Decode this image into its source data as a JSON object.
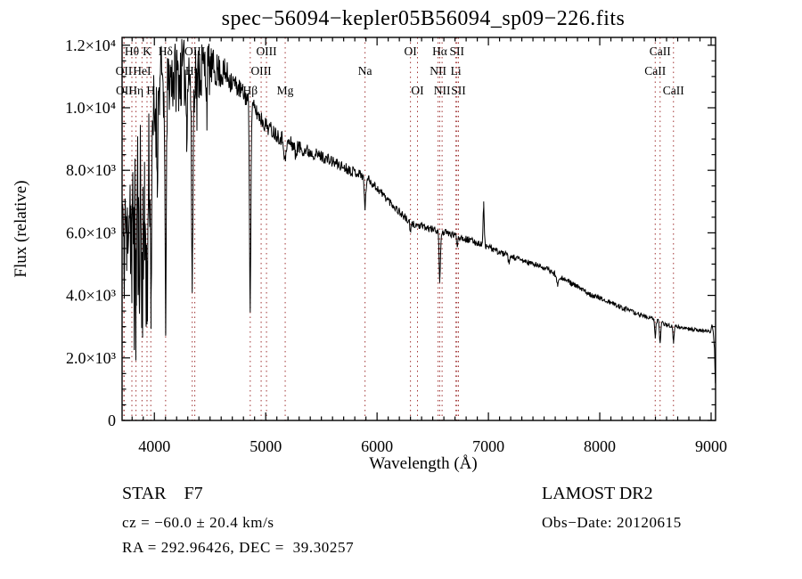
{
  "title": "spec−56094−kepler05B56094_sp09−226.fits",
  "footer": {
    "class_label": "STAR    F7",
    "survey": "LAMOST DR2",
    "cz": "cz = −60.0 ± 20.4 km/s",
    "obs_date": "Obs−Date: 20120615",
    "coords": "RA = 292.96426, DEC =  39.30257"
  },
  "chart_data": {
    "type": "line",
    "title": "spec−56094−kepler05B56094_sp09−226.fits",
    "xlabel": "Wavelength (Å)",
    "ylabel": "Flux (relative)",
    "xlim": [
      3710,
      9040
    ],
    "ylim": [
      0,
      12250
    ],
    "grid": false,
    "line_color": "#000000",
    "marker_line_color": "#a03333",
    "x_major_ticks": [
      4000,
      5000,
      6000,
      7000,
      8000,
      9000
    ],
    "x_tick_labels": [
      "4000",
      "5000",
      "6000",
      "7000",
      "8000",
      "9000"
    ],
    "x_minor_step": 100,
    "y_major_ticks": [
      0,
      2000,
      4000,
      6000,
      8000,
      10000,
      12000
    ],
    "y_tick_labels": [
      "0",
      "2.0×10³",
      "4.0×10³",
      "6.0×10³",
      "8.0×10³",
      "1.0×10⁴",
      "1.2×10⁴"
    ],
    "y_minor_step": 500,
    "line_markers": [
      {
        "label": "Hθ",
        "wavelength": 3798,
        "row": 1
      },
      {
        "label": "K",
        "wavelength": 3934,
        "row": 1
      },
      {
        "label": "Hδ",
        "wavelength": 4101,
        "row": 1
      },
      {
        "label": "OIII",
        "wavelength": 4363,
        "row": 1
      },
      {
        "label": "OIII",
        "wavelength": 5007,
        "row": 1
      },
      {
        "label": "OI",
        "wavelength": 6300,
        "row": 1
      },
      {
        "label": "Hα",
        "wavelength": 6563,
        "row": 1
      },
      {
        "label": "SII",
        "wavelength": 6717,
        "row": 1
      },
      {
        "label": "CaII",
        "wavelength": 8542,
        "row": 1
      },
      {
        "label": "OII",
        "wavelength": 3726,
        "row": 2
      },
      {
        "label": "HeI",
        "wavelength": 3889,
        "row": 2
      },
      {
        "label": "Hγ",
        "wavelength": 4340,
        "row": 2
      },
      {
        "label": "OIII",
        "wavelength": 4959,
        "row": 2
      },
      {
        "label": "Na",
        "wavelength": 5892,
        "row": 2
      },
      {
        "label": "NII",
        "wavelength": 6548,
        "row": 2
      },
      {
        "label": "Li",
        "wavelength": 6708,
        "row": 2
      },
      {
        "label": "CaII",
        "wavelength": 8498,
        "row": 2
      },
      {
        "label": "OII",
        "wavelength": 3729,
        "row": 3
      },
      {
        "label": "Hη",
        "wavelength": 3835,
        "row": 3
      },
      {
        "label": "H",
        "wavelength": 3968,
        "row": 3
      },
      {
        "label": "Hβ",
        "wavelength": 4861,
        "row": 3
      },
      {
        "label": "Mg",
        "wavelength": 5175,
        "row": 3
      },
      {
        "label": "OI",
        "wavelength": 6363,
        "row": 3
      },
      {
        "label": "NII",
        "wavelength": 6584,
        "row": 3
      },
      {
        "label": "SII",
        "wavelength": 6731,
        "row": 3
      },
      {
        "label": "CaII",
        "wavelength": 8662,
        "row": 3
      }
    ],
    "continuum": [
      [
        3710,
        6900
      ],
      [
        3780,
        7050
      ],
      [
        3860,
        7450
      ],
      [
        3920,
        8200
      ],
      [
        3980,
        9300
      ],
      [
        4050,
        10800
      ],
      [
        4150,
        11000
      ],
      [
        4300,
        11100
      ],
      [
        4500,
        11300
      ],
      [
        4650,
        11050
      ],
      [
        4800,
        10450
      ],
      [
        4900,
        9950
      ],
      [
        5000,
        9450
      ],
      [
        5100,
        9150
      ],
      [
        5200,
        8900
      ],
      [
        5350,
        8650
      ],
      [
        5500,
        8450
      ],
      [
        5700,
        8100
      ],
      [
        5900,
        7800
      ],
      [
        6100,
        7050
      ],
      [
        6300,
        6300
      ],
      [
        6450,
        6150
      ],
      [
        6560,
        6060
      ],
      [
        6700,
        5920
      ],
      [
        6950,
        5620
      ],
      [
        7100,
        5380
      ],
      [
        7300,
        5120
      ],
      [
        7500,
        4890
      ],
      [
        7700,
        4480
      ],
      [
        7900,
        4060
      ],
      [
        8100,
        3760
      ],
      [
        8300,
        3460
      ],
      [
        8480,
        3240
      ],
      [
        8600,
        3060
      ],
      [
        8750,
        2960
      ],
      [
        8900,
        2880
      ],
      [
        8990,
        2840
      ],
      [
        9018,
        2860
      ],
      [
        9030,
        2300
      ],
      [
        9040,
        850
      ]
    ],
    "noise_segments": [
      [
        3710,
        3780,
        1200,
        2400
      ],
      [
        3780,
        3940,
        3000,
        3000
      ],
      [
        3940,
        4055,
        2300,
        1100
      ],
      [
        4055,
        4500,
        1250,
        1000
      ],
      [
        4500,
        4700,
        650,
        420
      ],
      [
        4700,
        4900,
        330,
        290
      ],
      [
        4900,
        5400,
        270,
        230
      ],
      [
        5400,
        5900,
        200,
        160
      ],
      [
        5900,
        6300,
        145,
        130
      ],
      [
        6300,
        6900,
        115,
        110
      ],
      [
        6900,
        7600,
        100,
        92
      ],
      [
        7600,
        8300,
        85,
        78
      ],
      [
        8300,
        8700,
        70,
        64
      ],
      [
        8700,
        9040,
        58,
        48
      ]
    ],
    "absorption_lines": [
      [
        3727,
        2100,
        5
      ],
      [
        3752,
        1900,
        5
      ],
      [
        3798,
        2900,
        5
      ],
      [
        3820,
        2300,
        5
      ],
      [
        3835,
        3300,
        5
      ],
      [
        3860,
        2600,
        5
      ],
      [
        3889,
        3900,
        6
      ],
      [
        3912,
        2700,
        5
      ],
      [
        3934,
        4900,
        7
      ],
      [
        3970,
        4700,
        7
      ],
      [
        4026,
        2100,
        5
      ],
      [
        4101,
        7300,
        7
      ],
      [
        4290,
        1500,
        5
      ],
      [
        4340,
        6500,
        7
      ],
      [
        4383,
        1300,
        4
      ],
      [
        4472,
        1000,
        4
      ],
      [
        4861,
        6400,
        6
      ],
      [
        5175,
        650,
        9
      ],
      [
        5269,
        350,
        6
      ],
      [
        5892,
        1000,
        7
      ],
      [
        6300,
        300,
        5
      ],
      [
        6563,
        1600,
        6
      ],
      [
        6720,
        280,
        5
      ],
      [
        7186,
        260,
        7
      ],
      [
        7620,
        300,
        8
      ],
      [
        8498,
        540,
        5
      ],
      [
        8542,
        720,
        5
      ],
      [
        8662,
        540,
        5
      ]
    ],
    "emission_lines": [
      [
        6958,
        1300,
        5
      ],
      [
        9006,
        240,
        4
      ]
    ],
    "sample_step": 4,
    "seed": 11
  }
}
